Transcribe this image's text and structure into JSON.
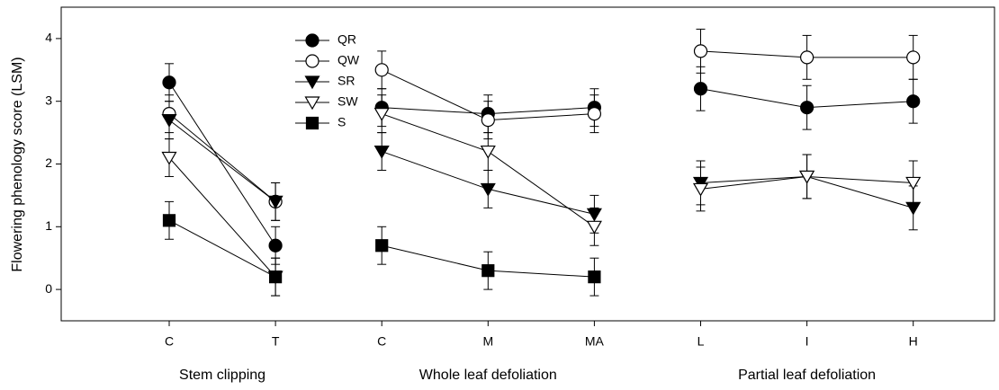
{
  "chart_data": {
    "type": "line",
    "ylabel": "Flowering phenology score (LSM)",
    "ylim": [
      -0.5,
      4.5
    ],
    "yticks": [
      0,
      1,
      2,
      3,
      4
    ],
    "groups": [
      {
        "label": "Stem clipping",
        "categories": [
          "C",
          "T"
        ]
      },
      {
        "label": "Whole leaf defoliation",
        "categories": [
          "C",
          "M",
          "MA"
        ]
      },
      {
        "label": "Partial leaf defoliation",
        "categories": [
          "L",
          "I",
          "H"
        ]
      }
    ],
    "series": [
      {
        "name": "QR",
        "marker": "circle",
        "filled": true,
        "color": "#000000",
        "values": [
          3.3,
          0.7,
          2.9,
          2.8,
          2.9,
          3.2,
          2.9,
          3.0
        ],
        "errors": [
          0.3,
          0.3,
          0.3,
          0.3,
          0.3,
          0.35,
          0.35,
          0.35
        ]
      },
      {
        "name": "QW",
        "marker": "circle",
        "filled": false,
        "color": "#000000",
        "values": [
          2.8,
          1.4,
          3.5,
          2.7,
          2.8,
          3.8,
          3.7,
          3.7
        ],
        "errors": [
          0.3,
          0.3,
          0.3,
          0.3,
          0.3,
          0.35,
          0.35,
          0.35
        ]
      },
      {
        "name": "SR",
        "marker": "triangle-down",
        "filled": true,
        "color": "#000000",
        "values": [
          2.7,
          1.4,
          2.2,
          1.6,
          1.2,
          1.7,
          1.8,
          1.3
        ],
        "errors": [
          0.3,
          0.3,
          0.3,
          0.3,
          0.3,
          0.35,
          0.35,
          0.35
        ]
      },
      {
        "name": "SW",
        "marker": "triangle-down",
        "filled": false,
        "color": "#000000",
        "values": [
          2.1,
          0.2,
          2.8,
          2.2,
          1.0,
          1.6,
          1.8,
          1.7
        ],
        "errors": [
          0.3,
          0.3,
          0.3,
          0.3,
          0.3,
          0.35,
          0.35,
          0.35
        ]
      },
      {
        "name": "S",
        "marker": "square",
        "filled": true,
        "color": "#000000",
        "values": [
          1.1,
          0.2,
          0.7,
          0.3,
          0.2,
          null,
          null,
          null
        ],
        "errors": [
          0.3,
          0.3,
          0.3,
          0.3,
          0.3,
          null,
          null,
          null
        ]
      }
    ]
  }
}
